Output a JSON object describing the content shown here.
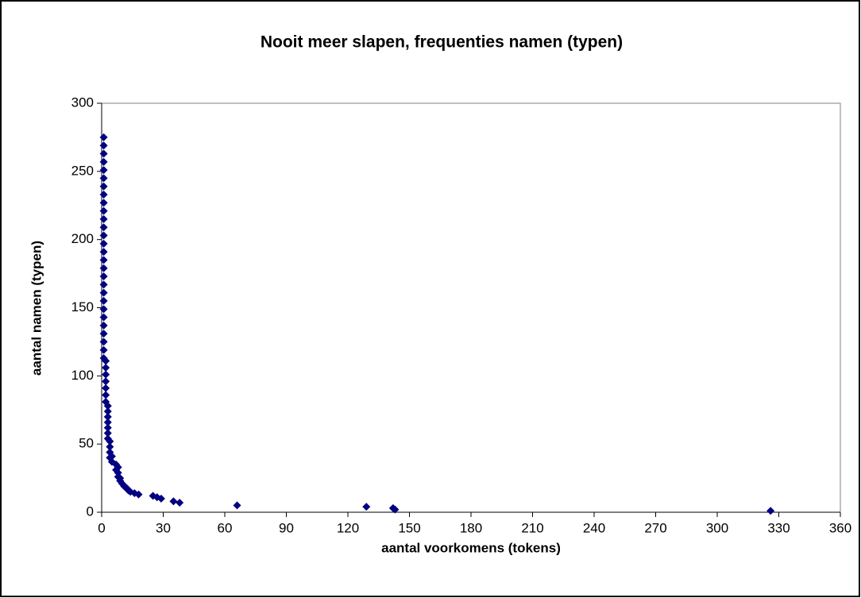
{
  "chart_data": {
    "type": "scatter",
    "title": "Nooit meer slapen, frequenties namen (typen)",
    "x_label": "aantal voorkomens (tokens)",
    "y_label": "aantal namen (typen)",
    "color": "#000080",
    "x": [
      1,
      1,
      1,
      1,
      1,
      1,
      1,
      1,
      1,
      1,
      1,
      1,
      1,
      1,
      1,
      1,
      1,
      1,
      1,
      1,
      1,
      1,
      1,
      1,
      1,
      1,
      1,
      1,
      2,
      2,
      2,
      2,
      2,
      2,
      2,
      3,
      3,
      3,
      3,
      3,
      3,
      3,
      4,
      4,
      4,
      4,
      5,
      5,
      7,
      7,
      8,
      8,
      8,
      9,
      9,
      10,
      11,
      12,
      13,
      14,
      16,
      18,
      25,
      27,
      29,
      35,
      38,
      66,
      129,
      142,
      143,
      326
    ],
    "y": [
      113,
      119,
      125,
      131,
      137,
      143,
      149,
      155,
      161,
      167,
      173,
      179,
      185,
      191,
      197,
      203,
      209,
      215,
      221,
      227,
      233,
      239,
      245,
      251,
      257,
      263,
      269,
      275,
      81,
      86,
      91,
      96,
      101,
      106,
      111,
      54,
      58,
      62,
      66,
      70,
      74,
      78,
      40,
      44,
      48,
      52,
      37,
      41,
      31,
      35,
      26,
      29,
      33,
      23,
      25,
      21,
      19,
      18,
      16,
      15,
      14,
      13,
      12,
      11,
      10,
      8,
      7,
      5,
      4,
      3,
      2,
      1
    ],
    "xlim": [
      0,
      360
    ],
    "xticks": [
      0,
      30,
      60,
      90,
      120,
      150,
      180,
      210,
      240,
      270,
      300,
      330,
      360
    ],
    "ylim": [
      0,
      300
    ],
    "yticks": [
      0,
      50,
      100,
      150,
      200,
      250,
      300
    ],
    "grid": false
  }
}
